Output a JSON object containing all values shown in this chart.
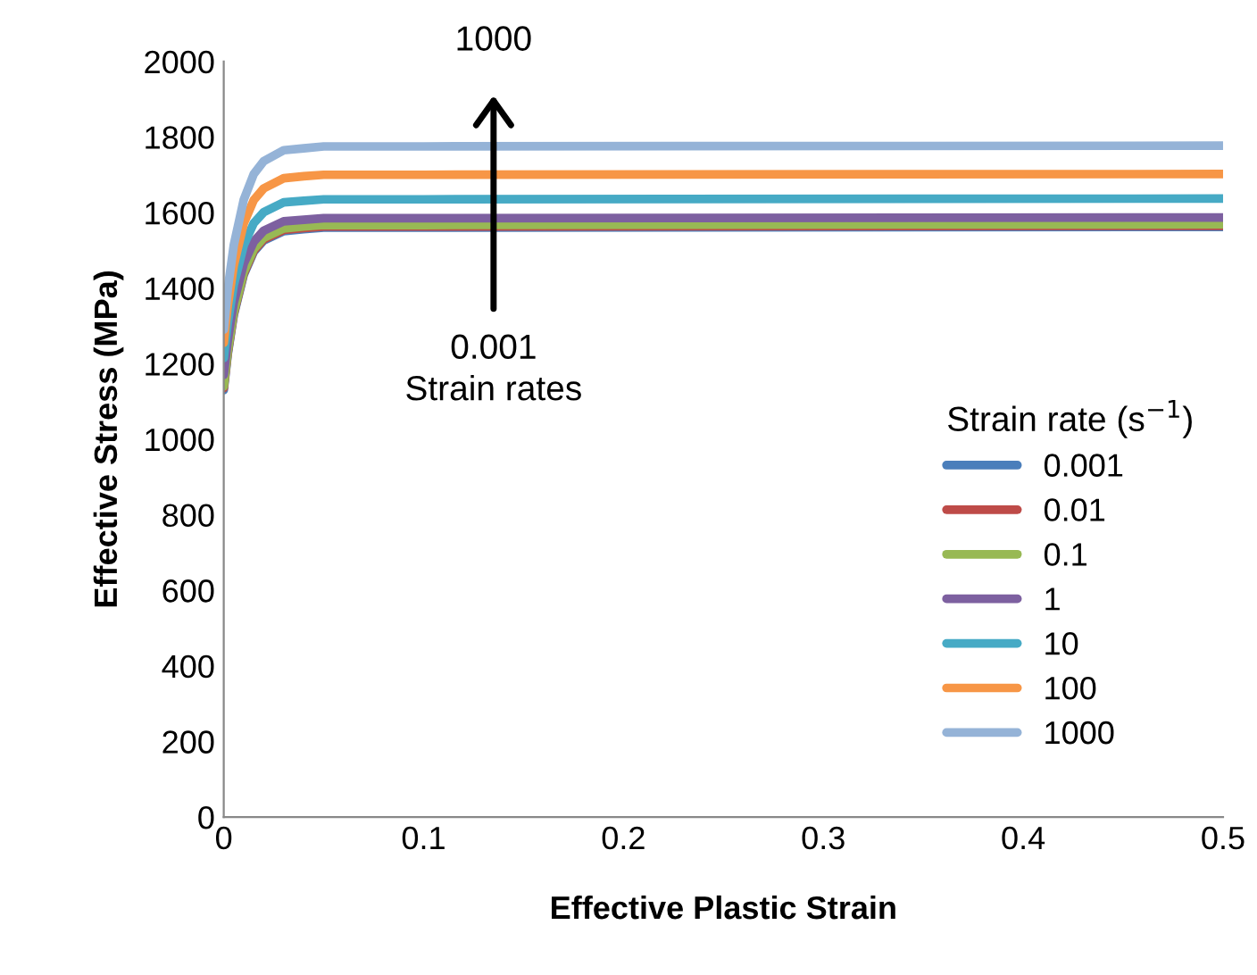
{
  "chart_data": {
    "type": "line",
    "xlabel": "Effective Plastic Strain",
    "ylabel": "Effective Stress (MPa)",
    "legend_title": "Strain rate (s$^{−1}$)",
    "legend": "right",
    "grid": false,
    "marker": "none",
    "line_style": "solid",
    "x": [
      0,
      0.002,
      0.005,
      0.01,
      0.015,
      0.02,
      0.03,
      0.04,
      0.05,
      0.1,
      0.5
    ],
    "series": [
      {
        "name": "0.001",
        "color": "#4a7ebb",
        "values": [
          1130,
          1225,
          1328,
          1435,
          1496,
          1526,
          1551,
          1556,
          1560,
          1560,
          1562
        ]
      },
      {
        "name": "0.01",
        "color": "#be4b48",
        "values": [
          1135,
          1229,
          1332,
          1439,
          1499,
          1529,
          1554,
          1559,
          1563,
          1563,
          1565
        ]
      },
      {
        "name": "0.1",
        "color": "#98b954",
        "values": [
          1140,
          1234,
          1336,
          1443,
          1503,
          1533,
          1558,
          1563,
          1567,
          1567,
          1569
        ]
      },
      {
        "name": "1",
        "color": "#7d60a0",
        "values": [
          1170,
          1261,
          1361,
          1465,
          1523,
          1552,
          1577,
          1581,
          1585,
          1585,
          1587
        ]
      },
      {
        "name": "10",
        "color": "#46aac5",
        "values": [
          1215,
          1307,
          1408,
          1513,
          1572,
          1601,
          1627,
          1631,
          1635,
          1635,
          1637
        ]
      },
      {
        "name": "100",
        "color": "#f79646",
        "values": [
          1255,
          1353,
          1460,
          1571,
          1633,
          1664,
          1691,
          1696,
          1700,
          1700,
          1702
        ]
      },
      {
        "name": "1000",
        "color": "#95b3d7",
        "values": [
          1290,
          1397,
          1513,
          1634,
          1702,
          1736,
          1765,
          1770,
          1775,
          1775,
          1777
        ]
      }
    ],
    "xlim": [
      0,
      0.5
    ],
    "xticks": [
      0,
      0.1,
      0.2,
      0.3,
      0.4,
      0.5
    ],
    "ylim": [
      0,
      2000
    ],
    "yticks": [
      0,
      200,
      400,
      600,
      800,
      1000,
      1200,
      1400,
      1600,
      1800,
      2000
    ],
    "annotations": [
      "1000",
      "0.001",
      "Strain rates"
    ]
  }
}
